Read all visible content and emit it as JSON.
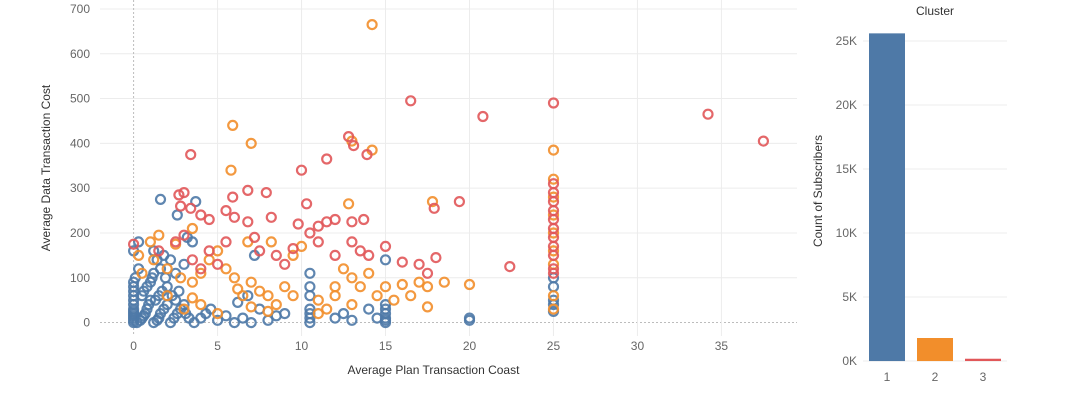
{
  "chart_data": [
    {
      "type": "scatter",
      "title": "",
      "xlabel": "Average Plan Transaction Coast",
      "ylabel": "Average Data Transaction Cost",
      "xlim": [
        -2,
        39.5
      ],
      "ylim": [
        -30,
        720
      ],
      "xticks": [
        0,
        5,
        10,
        15,
        20,
        25,
        30,
        35
      ],
      "yticks": [
        0,
        100,
        200,
        300,
        400,
        500,
        600,
        700
      ],
      "grid": true,
      "legend": "none",
      "marker": "hollow-circle",
      "series": [
        {
          "cluster": "1",
          "color": "#4e79a7",
          "points": [
            [
              0,
              0
            ],
            [
              0,
              5
            ],
            [
              0,
              10
            ],
            [
              0,
              15
            ],
            [
              0,
              20
            ],
            [
              0,
              25
            ],
            [
              0,
              30
            ],
            [
              0,
              40
            ],
            [
              0,
              50
            ],
            [
              0,
              60
            ],
            [
              0,
              70
            ],
            [
              0,
              80
            ],
            [
              0,
              90
            ],
            [
              0.1,
              100
            ],
            [
              0,
              160
            ],
            [
              0.3,
              180
            ],
            [
              0.2,
              0
            ],
            [
              0.4,
              5
            ],
            [
              0.5,
              10
            ],
            [
              0.6,
              15
            ],
            [
              0.7,
              20
            ],
            [
              0.8,
              30
            ],
            [
              0.9,
              40
            ],
            [
              1,
              50
            ],
            [
              0.5,
              60
            ],
            [
              0.6,
              70
            ],
            [
              0.8,
              80
            ],
            [
              1,
              90
            ],
            [
              1.1,
              100
            ],
            [
              1.2,
              110
            ],
            [
              0.3,
              120
            ],
            [
              1.2,
              0
            ],
            [
              1.4,
              5
            ],
            [
              1.5,
              10
            ],
            [
              1.6,
              20
            ],
            [
              1.8,
              30
            ],
            [
              2,
              40
            ],
            [
              1.3,
              50
            ],
            [
              1.5,
              60
            ],
            [
              1.7,
              70
            ],
            [
              2,
              80
            ],
            [
              1.9,
              100
            ],
            [
              1.6,
              120
            ],
            [
              1.4,
              140
            ],
            [
              1.2,
              160
            ],
            [
              2.2,
              0
            ],
            [
              2.4,
              10
            ],
            [
              2.6,
              20
            ],
            [
              2.8,
              30
            ],
            [
              3,
              40
            ],
            [
              2.5,
              50
            ],
            [
              2.3,
              60
            ],
            [
              2.7,
              70
            ],
            [
              3.1,
              20
            ],
            [
              3.3,
              10
            ],
            [
              3.6,
              0
            ],
            [
              4,
              10
            ],
            [
              4.3,
              20
            ],
            [
              4.6,
              30
            ],
            [
              5,
              5
            ],
            [
              5.5,
              15
            ],
            [
              1.8,
              150
            ],
            [
              2.2,
              140
            ],
            [
              2.5,
              110
            ],
            [
              3,
              130
            ],
            [
              3.2,
              190
            ],
            [
              3.5,
              180
            ],
            [
              1.6,
              275
            ],
            [
              2.6,
              240
            ],
            [
              3.7,
              270
            ],
            [
              6,
              0
            ],
            [
              6.5,
              10
            ],
            [
              7,
              0
            ],
            [
              7.5,
              30
            ],
            [
              8,
              5
            ],
            [
              8.5,
              15
            ],
            [
              9,
              20
            ],
            [
              6.2,
              45
            ],
            [
              6.8,
              60
            ],
            [
              7.2,
              150
            ],
            [
              10.5,
              0
            ],
            [
              10.5,
              10
            ],
            [
              10.5,
              20
            ],
            [
              10.5,
              30
            ],
            [
              10.5,
              60
            ],
            [
              10.5,
              80
            ],
            [
              10.5,
              110
            ],
            [
              12,
              10
            ],
            [
              12.5,
              20
            ],
            [
              13,
              5
            ],
            [
              14,
              30
            ],
            [
              14.5,
              10
            ],
            [
              15,
              0
            ],
            [
              15,
              5
            ],
            [
              15,
              10
            ],
            [
              15,
              20
            ],
            [
              15,
              30
            ],
            [
              15,
              40
            ],
            [
              15,
              140
            ],
            [
              20,
              5
            ],
            [
              20,
              10
            ],
            [
              25,
              25
            ],
            [
              25,
              40
            ],
            [
              25,
              50
            ],
            [
              25,
              80
            ],
            [
              25,
              100
            ]
          ]
        },
        {
          "cluster": "2",
          "color": "#f28e2b",
          "points": [
            [
              14.2,
              665
            ],
            [
              5.9,
              440
            ],
            [
              13,
              405
            ],
            [
              14.2,
              385
            ],
            [
              7,
              400
            ],
            [
              5.8,
              340
            ],
            [
              12.8,
              265
            ],
            [
              3.5,
              210
            ],
            [
              2.5,
              175
            ],
            [
              1.5,
              195
            ],
            [
              1,
              180
            ],
            [
              0.3,
              150
            ],
            [
              0.5,
              110
            ],
            [
              1.2,
              140
            ],
            [
              2,
              120
            ],
            [
              2.8,
              100
            ],
            [
              3.5,
              90
            ],
            [
              4,
              110
            ],
            [
              4.5,
              140
            ],
            [
              5,
              160
            ],
            [
              5.5,
              120
            ],
            [
              6,
              100
            ],
            [
              6.2,
              75
            ],
            [
              6.5,
              60
            ],
            [
              7,
              90
            ],
            [
              7.5,
              70
            ],
            [
              8,
              60
            ],
            [
              8.5,
              40
            ],
            [
              9,
              80
            ],
            [
              9.5,
              60
            ],
            [
              10,
              170
            ],
            [
              9.5,
              150
            ],
            [
              8.2,
              180
            ],
            [
              6.8,
              180
            ],
            [
              11,
              50
            ],
            [
              11.5,
              30
            ],
            [
              12,
              80
            ],
            [
              12,
              60
            ],
            [
              13,
              100
            ],
            [
              13.5,
              80
            ],
            [
              14,
              110
            ],
            [
              14.5,
              60
            ],
            [
              15,
              80
            ],
            [
              15.5,
              50
            ],
            [
              16,
              85
            ],
            [
              16.5,
              60
            ],
            [
              17,
              90
            ],
            [
              17.5,
              80
            ],
            [
              17.8,
              270
            ],
            [
              17.5,
              35
            ],
            [
              18.5,
              90
            ],
            [
              20,
              85
            ],
            [
              13,
              40
            ],
            [
              11,
              20
            ],
            [
              12.5,
              120
            ],
            [
              2,
              60
            ],
            [
              3,
              30
            ],
            [
              4,
              40
            ],
            [
              5,
              20
            ],
            [
              7,
              35
            ],
            [
              8,
              25
            ],
            [
              3.5,
              55
            ],
            [
              25,
              385
            ],
            [
              25,
              320
            ],
            [
              25,
              280
            ],
            [
              25,
              240
            ],
            [
              25,
              200
            ],
            [
              25,
              160
            ],
            [
              25,
              130
            ],
            [
              25,
              60
            ],
            [
              25,
              30
            ]
          ]
        },
        {
          "cluster": "3",
          "color": "#e15759",
          "points": [
            [
              37.5,
              405
            ],
            [
              34.2,
              465
            ],
            [
              16.5,
              495
            ],
            [
              20.8,
              460
            ],
            [
              25,
              490
            ],
            [
              3.4,
              375
            ],
            [
              10,
              340
            ],
            [
              11.5,
              365
            ],
            [
              12.8,
              415
            ],
            [
              13.1,
              395
            ],
            [
              13.9,
              375
            ],
            [
              2.7,
              285
            ],
            [
              3,
              290
            ],
            [
              5.9,
              280
            ],
            [
              6.8,
              295
            ],
            [
              7.9,
              290
            ],
            [
              19.4,
              270
            ],
            [
              10.3,
              265
            ],
            [
              8.2,
              235
            ],
            [
              9.8,
              220
            ],
            [
              11,
              215
            ],
            [
              11.5,
              225
            ],
            [
              12,
              230
            ],
            [
              13,
              225
            ],
            [
              13.7,
              230
            ],
            [
              17.9,
              255
            ],
            [
              2.8,
              260
            ],
            [
              3.4,
              255
            ],
            [
              4,
              240
            ],
            [
              4.5,
              230
            ],
            [
              5.5,
              250
            ],
            [
              6,
              235
            ],
            [
              6.8,
              225
            ],
            [
              7.2,
              190
            ],
            [
              7.5,
              160
            ],
            [
              8.5,
              150
            ],
            [
              9,
              130
            ],
            [
              9.5,
              165
            ],
            [
              10.5,
              200
            ],
            [
              11,
              180
            ],
            [
              12,
              150
            ],
            [
              13,
              180
            ],
            [
              13.5,
              160
            ],
            [
              14,
              150
            ],
            [
              15,
              170
            ],
            [
              16,
              135
            ],
            [
              17,
              130
            ],
            [
              17.5,
              110
            ],
            [
              18,
              145
            ],
            [
              22.4,
              125
            ],
            [
              3,
              195
            ],
            [
              2.5,
              180
            ],
            [
              1.5,
              160
            ],
            [
              0,
              175
            ],
            [
              4.5,
              160
            ],
            [
              5,
              130
            ],
            [
              5.5,
              180
            ],
            [
              4,
              120
            ],
            [
              3.5,
              140
            ],
            [
              25,
              310
            ],
            [
              25,
              290
            ],
            [
              25,
              270
            ],
            [
              25,
              250
            ],
            [
              25,
              230
            ],
            [
              25,
              210
            ],
            [
              25,
              190
            ],
            [
              25,
              170
            ],
            [
              25,
              150
            ],
            [
              25,
              120
            ],
            [
              25,
              110
            ]
          ]
        }
      ]
    },
    {
      "type": "bar",
      "title": "Cluster",
      "xlabel": "",
      "ylabel": "Count of Subscribers",
      "categories": [
        "1",
        "2",
        "3"
      ],
      "values": [
        25600,
        1800,
        180
      ],
      "colors": [
        "#4e79a7",
        "#f28e2b",
        "#e15759"
      ],
      "ylim": [
        -700,
        26800
      ],
      "yticks": [
        0,
        5000,
        10000,
        15000,
        20000,
        25000
      ],
      "ytick_labels": [
        "0K",
        "5K",
        "10K",
        "15K",
        "20K",
        "25K"
      ],
      "grid": true
    }
  ]
}
